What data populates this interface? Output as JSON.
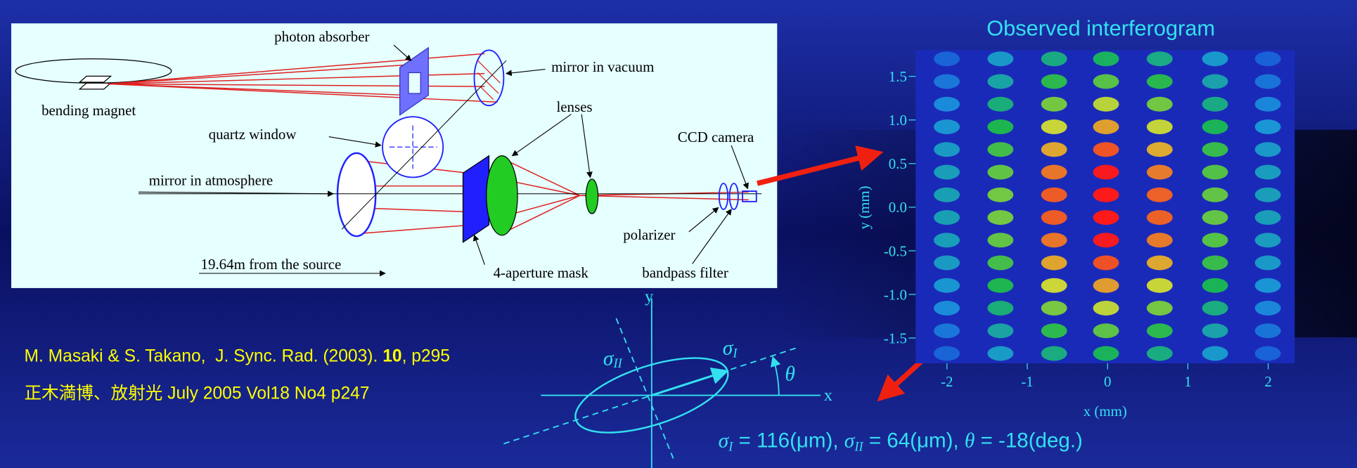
{
  "slide": {
    "diagram": {
      "labels": [
        "photon absorber",
        "mirror in vacuum",
        "bending magnet",
        "lenses",
        "quartz window",
        "CCD camera",
        "mirror in atmosphere",
        "polarizer",
        "19.64m from the source",
        "4-aperture mask",
        "bandpass filter"
      ]
    },
    "interferogram": {
      "title": "Observed interferogram",
      "x_label": "x (mm)",
      "y_label": "y (mm)",
      "xlim": [
        -2.39,
        2.33
      ],
      "ylim": [
        -1.79,
        1.8
      ],
      "xticks": [
        -2,
        -1,
        0,
        1,
        2
      ],
      "yticks": [
        1.5,
        {
          "value": 1,
          "label": "1.0"
        },
        0.5,
        {
          "value": 0,
          "label": "0.0"
        },
        -0.5,
        {
          "value": -1,
          "label": "-1.0"
        },
        -1.5
      ]
    },
    "citation": {
      "line1_start": "M. Masaki & S. Takano,  J. Sync. Rad. (2003). ",
      "line1_bold": "10",
      "line1_end": ", p295",
      "line2": "正木満博、放射光 July 2005 Vol18 No4 p247"
    },
    "inset": {
      "y_axis": "y",
      "x_axis": "x",
      "sigma": "σ",
      "sub_II": "II",
      "sub_I": "I",
      "theta": "θ"
    },
    "result": {
      "sigma": "σ",
      "sub_I": "I",
      "part1": " = 116(μm), ",
      "sub_II": "II",
      "part2": " = 64(μm), ",
      "theta": "θ",
      "part3": " = -18(deg.)"
    }
  }
}
